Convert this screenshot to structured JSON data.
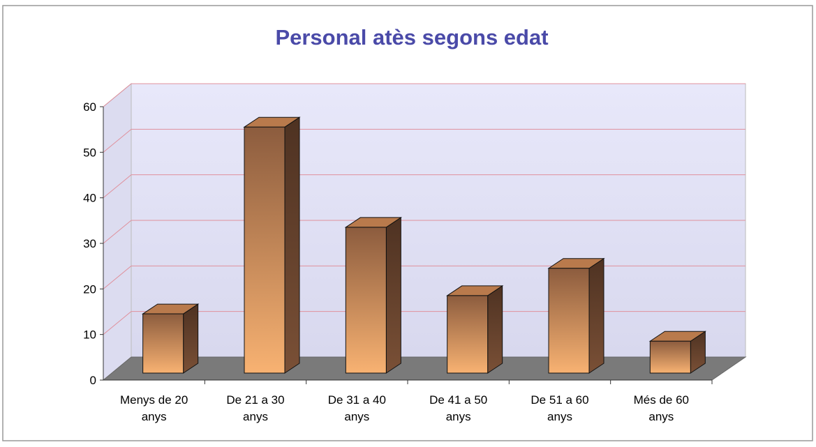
{
  "chart_data": {
    "type": "bar3d",
    "title": "Personal atès segons edat",
    "categories": [
      "Menys de 20 anys",
      "De 21 a 30 anys",
      "De 31 a 40 anys",
      "De 41 a 50 anys",
      "De 51 a 60 anys",
      "Més de 60 anys"
    ],
    "values": [
      13,
      54,
      32,
      17,
      23,
      7
    ],
    "color": "#f3a868",
    "ylim": [
      0,
      60
    ],
    "yticks": [
      0,
      10,
      20,
      30,
      40,
      50,
      60
    ],
    "grid": true
  }
}
